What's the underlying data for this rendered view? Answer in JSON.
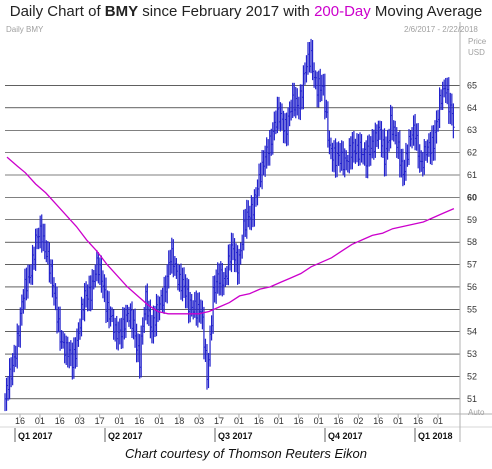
{
  "title": {
    "prefix": "Daily Chart of ",
    "symbol": "BMY",
    "middle": " since February 2017 with ",
    "ma_label": "200-Day",
    "suffix": " Moving Average"
  },
  "credit": "Chart courtesy of Thomson Reuters Eikon",
  "header": {
    "left_label": "Daily BMY",
    "date_range": "2/6/2017 - 2/22/2018",
    "price_unit": "Price",
    "currency": "USD",
    "auto_label": "Auto"
  },
  "colors": {
    "price_bars": "#2222cc",
    "moving_average": "#cc00cc",
    "grid": "#000000",
    "frame": "#b0b0b0"
  },
  "chart_data": {
    "type": "line",
    "ylim": [
      50.5,
      67.3
    ],
    "y_ticks": [
      51,
      52,
      53,
      54,
      55,
      56,
      57,
      58,
      59,
      60,
      61,
      62,
      63,
      64,
      65
    ],
    "y_tick_labels": [
      "51",
      "52",
      "53",
      "54",
      "55",
      "56",
      "57",
      "58",
      "59",
      "60",
      "61",
      "62",
      "63",
      "64",
      "65"
    ],
    "highlight_tick": "60",
    "x_tick_labels": [
      "16",
      "01",
      "16",
      "03",
      "17",
      "01",
      "16",
      "01",
      "18",
      "03",
      "17",
      "01",
      "16",
      "01",
      "16",
      "01",
      "16",
      "02",
      "16",
      "01",
      "16",
      "01"
    ],
    "periods": [
      "Q1 2017",
      "Q2 2017",
      "Q3 2017",
      "Q4 2017",
      "Q1 2018"
    ],
    "series": [
      {
        "kind": "daily_price",
        "x": [
          0,
          6,
          12,
          18,
          24,
          30,
          36,
          42,
          48,
          54,
          60,
          66,
          72,
          78,
          84,
          90,
          96,
          102,
          108,
          114,
          120,
          126,
          132,
          138,
          144,
          150,
          156,
          162,
          168,
          174,
          180,
          186,
          192,
          198,
          204,
          210,
          216,
          222,
          228,
          234,
          240,
          246,
          252,
          258,
          264,
          270,
          276,
          282,
          288,
          294,
          300,
          306,
          312,
          318,
          324,
          330,
          336,
          342,
          348,
          354,
          360,
          366,
          372,
          378,
          384,
          390,
          396,
          402,
          408,
          414,
          420,
          426,
          432,
          438,
          440
        ],
        "values": [
          51.0,
          52.0,
          53.8,
          55.5,
          56.6,
          58.0,
          58.3,
          57.5,
          55.5,
          54.0,
          53.0,
          52.7,
          54.0,
          55.4,
          56.0,
          56.8,
          56.2,
          54.8,
          53.8,
          54.3,
          54.5,
          54.5,
          52.7,
          55.4,
          54.3,
          54.8,
          55.9,
          57.3,
          56.6,
          56.3,
          55.0,
          55.3,
          54.8,
          52.1,
          55.7,
          56.3,
          56.6,
          57.5,
          57.1,
          58.6,
          59.1,
          60.4,
          61.0,
          62.5,
          63.1,
          63.6,
          63.3,
          64.0,
          64.4,
          65.5,
          66.3,
          65.0,
          64.6,
          62.5,
          61.5,
          61.8,
          61.8,
          62.0,
          62.4,
          61.5,
          62.5,
          63.0,
          61.7,
          63.5,
          62.2,
          61.3,
          62.3,
          63.0,
          61.5,
          62.0,
          62.7,
          64.0,
          65.0,
          63.8,
          63.0
        ]
      },
      {
        "kind": "moving_average_200",
        "x": [
          2,
          12,
          20,
          30,
          40,
          50,
          60,
          70,
          80,
          90,
          100,
          110,
          120,
          130,
          140,
          150,
          160,
          170,
          180,
          190,
          200,
          210,
          220,
          230,
          240,
          250,
          260,
          270,
          280,
          290,
          300,
          310,
          320,
          330,
          340,
          350,
          360,
          370,
          380,
          390,
          400,
          410,
          420,
          430,
          440
        ],
        "values": [
          61.8,
          61.4,
          61.1,
          60.6,
          60.2,
          59.7,
          59.2,
          58.7,
          58.1,
          57.6,
          57.0,
          56.5,
          56.0,
          55.6,
          55.2,
          54.9,
          54.8,
          54.8,
          54.8,
          54.8,
          54.9,
          55.1,
          55.3,
          55.6,
          55.7,
          55.9,
          56.0,
          56.2,
          56.4,
          56.6,
          56.9,
          57.1,
          57.3,
          57.6,
          57.9,
          58.1,
          58.3,
          58.4,
          58.6,
          58.7,
          58.8,
          58.9,
          59.1,
          59.3,
          59.5
        ]
      }
    ]
  }
}
